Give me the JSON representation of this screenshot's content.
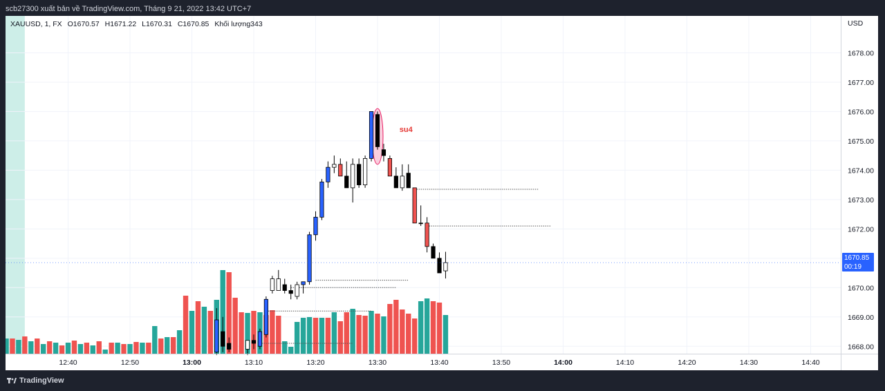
{
  "caption": "scb27300 xuất bản về TradingView.com, Tháng 9 21, 2022 13:42 UTC+7",
  "footer_brand": "TradingView",
  "legend": {
    "symbol": "XAUUSD, 1, FX",
    "open": "O1670.57",
    "high": "H1671.22",
    "low": "L1670.31",
    "close": "C1670.85",
    "volume": "Khối lượng343"
  },
  "currency": "USD",
  "last_price": {
    "value": "1670.85",
    "countdown": "00:19",
    "color": "#2962ff"
  },
  "colors": {
    "bull": "#26a69a",
    "bear": "#ef5350",
    "black_candle": "#000000",
    "blue_candle": "#2962ff",
    "session_band": "#cdeee8",
    "annotation_fill": "#f8bbd0",
    "annotation_stroke": "#e91e63",
    "annotation_text": "#e53935"
  },
  "chart_data": {
    "type": "candlestick",
    "ylim": [
      1667.7,
      1679.0
    ],
    "y_ticks": [
      "1678.00",
      "1677.00",
      "1676.00",
      "1675.00",
      "1674.00",
      "1673.00",
      "1672.00",
      "1671.00",
      "1670.00",
      "1669.00",
      "1668.00"
    ],
    "x_ticks": [
      {
        "label": "12:40",
        "min": 40,
        "bold": false
      },
      {
        "label": "12:50",
        "min": 50,
        "bold": false
      },
      {
        "label": "13:00",
        "min": 60,
        "bold": true
      },
      {
        "label": "13:10",
        "min": 70,
        "bold": false
      },
      {
        "label": "13:20",
        "min": 80,
        "bold": false
      },
      {
        "label": "13:30",
        "min": 90,
        "bold": false
      },
      {
        "label": "13:40",
        "min": 100,
        "bold": false
      },
      {
        "label": "13:50",
        "min": 110,
        "bold": false
      },
      {
        "label": "14:00",
        "min": 120,
        "bold": true
      },
      {
        "label": "14:10",
        "min": 130,
        "bold": false
      },
      {
        "label": "14:20",
        "min": 140,
        "bold": false
      },
      {
        "label": "14:30",
        "min": 150,
        "bold": false
      },
      {
        "label": "14:40",
        "min": 160,
        "bold": false
      }
    ],
    "candles": [
      {
        "t": 64,
        "o": 1668.9,
        "h": 1669.3,
        "l": 1667.7,
        "c": 1667.8,
        "col": "blue"
      },
      {
        "t": 65,
        "o": 1668.0,
        "h": 1669.0,
        "l": 1667.8,
        "c": 1668.5,
        "col": "black"
      },
      {
        "t": 66,
        "o": 1668.1,
        "h": 1668.3,
        "l": 1667.8,
        "c": 1667.9,
        "col": "black"
      },
      {
        "t": 69,
        "o": 1667.9,
        "h": 1668.2,
        "l": 1667.7,
        "c": 1668.2,
        "col": "white"
      },
      {
        "t": 70,
        "o": 1668.2,
        "h": 1668.4,
        "l": 1667.9,
        "c": 1668.1,
        "col": "black"
      },
      {
        "t": 71,
        "o": 1668.0,
        "h": 1668.6,
        "l": 1667.9,
        "c": 1668.5,
        "col": "blue"
      },
      {
        "t": 72,
        "o": 1668.4,
        "h": 1669.7,
        "l": 1668.3,
        "c": 1669.6,
        "col": "blue"
      },
      {
        "t": 73,
        "o": 1669.9,
        "h": 1670.4,
        "l": 1669.8,
        "c": 1670.3,
        "col": "white"
      },
      {
        "t": 74,
        "o": 1670.3,
        "h": 1670.6,
        "l": 1669.9,
        "c": 1669.9,
        "col": "white"
      },
      {
        "t": 75,
        "o": 1670.1,
        "h": 1670.3,
        "l": 1669.8,
        "c": 1669.9,
        "col": "black"
      },
      {
        "t": 76,
        "o": 1669.9,
        "h": 1670.1,
        "l": 1669.6,
        "c": 1669.8,
        "col": "black"
      },
      {
        "t": 77,
        "o": 1669.7,
        "h": 1670.2,
        "l": 1669.6,
        "c": 1670.1,
        "col": "white"
      },
      {
        "t": 78,
        "o": 1670.1,
        "h": 1670.2,
        "l": 1669.8,
        "c": 1670.2,
        "col": "blue"
      },
      {
        "t": 79,
        "o": 1670.2,
        "h": 1671.9,
        "l": 1670.1,
        "c": 1671.8,
        "col": "blue"
      },
      {
        "t": 80,
        "o": 1671.8,
        "h": 1672.6,
        "l": 1671.6,
        "c": 1672.4,
        "col": "blue"
      },
      {
        "t": 81,
        "o": 1672.4,
        "h": 1673.7,
        "l": 1672.3,
        "c": 1673.6,
        "col": "blue"
      },
      {
        "t": 82,
        "o": 1673.6,
        "h": 1674.3,
        "l": 1673.4,
        "c": 1674.1,
        "col": "blue"
      },
      {
        "t": 83,
        "o": 1674.1,
        "h": 1674.5,
        "l": 1673.9,
        "c": 1674.2,
        "col": "white"
      },
      {
        "t": 84,
        "o": 1674.2,
        "h": 1674.4,
        "l": 1673.8,
        "c": 1673.8,
        "col": "red"
      },
      {
        "t": 85,
        "o": 1673.8,
        "h": 1674.3,
        "l": 1673.4,
        "c": 1673.4,
        "col": "black"
      },
      {
        "t": 86,
        "o": 1673.4,
        "h": 1674.4,
        "l": 1672.9,
        "c": 1674.2,
        "col": "white"
      },
      {
        "t": 87,
        "o": 1674.2,
        "h": 1674.4,
        "l": 1673.4,
        "c": 1673.5,
        "col": "black"
      },
      {
        "t": 88,
        "o": 1673.5,
        "h": 1674.5,
        "l": 1673.4,
        "c": 1674.4,
        "col": "white"
      },
      {
        "t": 89,
        "o": 1674.4,
        "h": 1676.0,
        "l": 1674.3,
        "c": 1676.0,
        "col": "blue"
      },
      {
        "t": 90,
        "o": 1675.9,
        "h": 1676.0,
        "l": 1674.7,
        "c": 1674.8,
        "col": "black"
      },
      {
        "t": 91,
        "o": 1674.7,
        "h": 1674.9,
        "l": 1674.3,
        "c": 1674.5,
        "col": "black"
      },
      {
        "t": 92,
        "o": 1674.4,
        "h": 1674.5,
        "l": 1673.8,
        "c": 1673.8,
        "col": "red"
      },
      {
        "t": 93,
        "o": 1673.8,
        "h": 1674.1,
        "l": 1673.4,
        "c": 1673.4,
        "col": "black"
      },
      {
        "t": 94,
        "o": 1673.4,
        "h": 1674.2,
        "l": 1673.3,
        "c": 1673.8,
        "col": "white"
      },
      {
        "t": 95,
        "o": 1673.9,
        "h": 1674.2,
        "l": 1673.4,
        "c": 1673.4,
        "col": "black"
      },
      {
        "t": 96,
        "o": 1673.4,
        "h": 1673.4,
        "l": 1672.2,
        "c": 1672.2,
        "col": "red"
      },
      {
        "t": 97,
        "o": 1672.2,
        "h": 1672.8,
        "l": 1672.1,
        "c": 1672.2,
        "col": "black"
      },
      {
        "t": 98,
        "o": 1672.2,
        "h": 1672.4,
        "l": 1671.2,
        "c": 1671.4,
        "col": "red"
      },
      {
        "t": 99,
        "o": 1671.4,
        "h": 1671.5,
        "l": 1671.0,
        "c": 1671.0,
        "col": "black"
      },
      {
        "t": 100,
        "o": 1671.0,
        "h": 1671.2,
        "l": 1670.5,
        "c": 1670.5,
        "col": "black"
      },
      {
        "t": 101,
        "o": 1670.57,
        "h": 1671.22,
        "l": 1670.31,
        "c": 1670.85,
        "col": "white"
      }
    ],
    "volumes": [
      {
        "t": 30,
        "v": 22,
        "up": true
      },
      {
        "t": 31,
        "v": 22,
        "up": false
      },
      {
        "t": 32,
        "v": 20,
        "up": true
      },
      {
        "t": 33,
        "v": 25,
        "up": false
      },
      {
        "t": 34,
        "v": 18,
        "up": true
      },
      {
        "t": 35,
        "v": 22,
        "up": false
      },
      {
        "t": 36,
        "v": 14,
        "up": true
      },
      {
        "t": 37,
        "v": 18,
        "up": false
      },
      {
        "t": 38,
        "v": 16,
        "up": true
      },
      {
        "t": 39,
        "v": 12,
        "up": false
      },
      {
        "t": 40,
        "v": 16,
        "up": true
      },
      {
        "t": 41,
        "v": 19,
        "up": false
      },
      {
        "t": 42,
        "v": 14,
        "up": true
      },
      {
        "t": 43,
        "v": 16,
        "up": false
      },
      {
        "t": 44,
        "v": 12,
        "up": true
      },
      {
        "t": 45,
        "v": 18,
        "up": false
      },
      {
        "t": 46,
        "v": 6,
        "up": true
      },
      {
        "t": 47,
        "v": 16,
        "up": false
      },
      {
        "t": 48,
        "v": 16,
        "up": true
      },
      {
        "t": 49,
        "v": 14,
        "up": false
      },
      {
        "t": 50,
        "v": 14,
        "up": true
      },
      {
        "t": 51,
        "v": 17,
        "up": false
      },
      {
        "t": 52,
        "v": 16,
        "up": true
      },
      {
        "t": 53,
        "v": 16,
        "up": false
      },
      {
        "t": 54,
        "v": 40,
        "up": true
      },
      {
        "t": 55,
        "v": 22,
        "up": false
      },
      {
        "t": 56,
        "v": 24,
        "up": true
      },
      {
        "t": 57,
        "v": 24,
        "up": false
      },
      {
        "t": 58,
        "v": 34,
        "up": true
      },
      {
        "t": 59,
        "v": 84,
        "up": false
      },
      {
        "t": 60,
        "v": 62,
        "up": true
      },
      {
        "t": 61,
        "v": 76,
        "up": false
      },
      {
        "t": 62,
        "v": 68,
        "up": true
      },
      {
        "t": 63,
        "v": 62,
        "up": false
      },
      {
        "t": 64,
        "v": 78,
        "up": true
      },
      {
        "t": 65,
        "v": 121,
        "up": true
      },
      {
        "t": 66,
        "v": 118,
        "up": false
      },
      {
        "t": 67,
        "v": 81,
        "up": false
      },
      {
        "t": 68,
        "v": 60,
        "up": false
      },
      {
        "t": 69,
        "v": 59,
        "up": true
      },
      {
        "t": 70,
        "v": 62,
        "up": false
      },
      {
        "t": 71,
        "v": 60,
        "up": true
      },
      {
        "t": 72,
        "v": 56,
        "up": false
      },
      {
        "t": 73,
        "v": 63,
        "up": false
      },
      {
        "t": 74,
        "v": 55,
        "up": false
      },
      {
        "t": 75,
        "v": 18,
        "up": true
      },
      {
        "t": 76,
        "v": 10,
        "up": true
      },
      {
        "t": 77,
        "v": 46,
        "up": true
      },
      {
        "t": 78,
        "v": 52,
        "up": true
      },
      {
        "t": 79,
        "v": 53,
        "up": true
      },
      {
        "t": 80,
        "v": 52,
        "up": false
      },
      {
        "t": 81,
        "v": 52,
        "up": true
      },
      {
        "t": 82,
        "v": 52,
        "up": false
      },
      {
        "t": 83,
        "v": 60,
        "up": true
      },
      {
        "t": 84,
        "v": 47,
        "up": false
      },
      {
        "t": 85,
        "v": 60,
        "up": false
      },
      {
        "t": 86,
        "v": 65,
        "up": true
      },
      {
        "t": 87,
        "v": 56,
        "up": false
      },
      {
        "t": 88,
        "v": 55,
        "up": false
      },
      {
        "t": 89,
        "v": 62,
        "up": true
      },
      {
        "t": 90,
        "v": 58,
        "up": false
      },
      {
        "t": 91,
        "v": 54,
        "up": true
      },
      {
        "t": 92,
        "v": 72,
        "up": false
      },
      {
        "t": 93,
        "v": 78,
        "up": false
      },
      {
        "t": 94,
        "v": 64,
        "up": false
      },
      {
        "t": 95,
        "v": 58,
        "up": false
      },
      {
        "t": 96,
        "v": 51,
        "up": false
      },
      {
        "t": 97,
        "v": 76,
        "up": true
      },
      {
        "t": 98,
        "v": 80,
        "up": true
      },
      {
        "t": 99,
        "v": 76,
        "up": false
      },
      {
        "t": 100,
        "v": 74,
        "up": false
      },
      {
        "t": 101,
        "v": 56,
        "up": true
      }
    ],
    "horizontal_lines": [
      {
        "price": 1673.35,
        "from": 96,
        "to": 116,
        "color": "#555555"
      },
      {
        "price": 1672.1,
        "from": 98,
        "to": 118,
        "color": "#555555"
      },
      {
        "price": 1670.25,
        "from": 80,
        "to": 95,
        "color": "#555555"
      },
      {
        "price": 1670.0,
        "from": 76,
        "to": 93,
        "color": "#555555"
      },
      {
        "price": 1669.2,
        "from": 72,
        "to": 89,
        "color": "#555555"
      },
      {
        "price": 1668.1,
        "from": 71,
        "to": 86,
        "color": "#555555"
      }
    ],
    "annotation": {
      "label": "su4",
      "t": 90,
      "price_top": 1676.1,
      "price_bottom": 1674.2,
      "label_t": 94,
      "label_price": 1675.4
    },
    "session_band": {
      "from_t": 29.5,
      "to_t": 33
    }
  }
}
